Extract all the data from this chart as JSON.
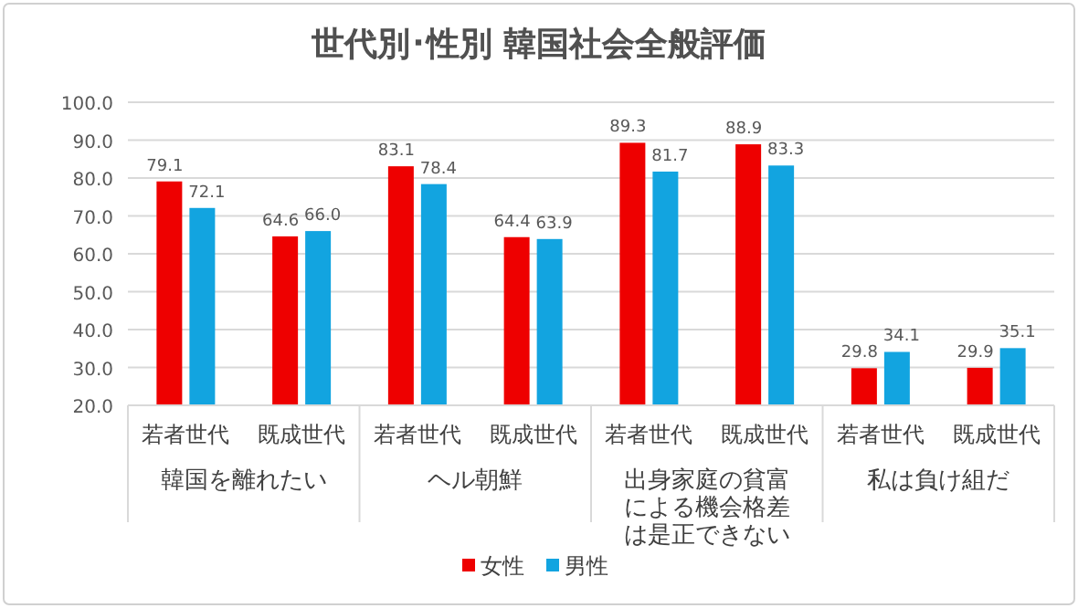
{
  "chart_data": {
    "type": "bar",
    "title": "世代別･性別 韓国社会全般評価",
    "categories": [
      "若者世代",
      "既成世代",
      "若者世代",
      "既成世代",
      "若者世代",
      "既成世代",
      "若者世代",
      "既成世代"
    ],
    "series": [
      {
        "name": "女性",
        "color": "#ee0000",
        "values": [
          79.1,
          64.6,
          83.1,
          64.4,
          89.3,
          88.9,
          29.8,
          29.9
        ],
        "value_labels": [
          "79.1",
          "64.6",
          "83.1",
          "64.4",
          "89.3",
          "88.9",
          "29.8",
          "29.9"
        ]
      },
      {
        "name": "男性",
        "color": "#12a4e0",
        "values": [
          72.1,
          66.0,
          78.4,
          63.9,
          81.7,
          83.3,
          34.1,
          35.1
        ],
        "value_labels": [
          "72.1",
          "66.0",
          "78.4",
          "63.9",
          "81.7",
          "83.3",
          "34.1",
          "35.1"
        ]
      }
    ],
    "annotations": [
      "韓国を離れたい",
      "ヘル朝鮮",
      "出身家庭の貧富による機会格差は是正できない",
      "私は負け組だ"
    ],
    "ylim": [
      20,
      100
    ],
    "yticks": [
      {
        "value": 20,
        "label": "20.0"
      },
      {
        "value": 30,
        "label": "30.0"
      },
      {
        "value": 40,
        "label": "40.0"
      },
      {
        "value": 50,
        "label": "50.0"
      },
      {
        "value": 60,
        "label": "60.0"
      },
      {
        "value": 70,
        "label": "70.0"
      },
      {
        "value": 80,
        "label": "80.0"
      },
      {
        "value": 90,
        "label": "90.0"
      },
      {
        "value": 100,
        "label": "100.0"
      }
    ],
    "grid": "y",
    "legend": "bottom"
  }
}
